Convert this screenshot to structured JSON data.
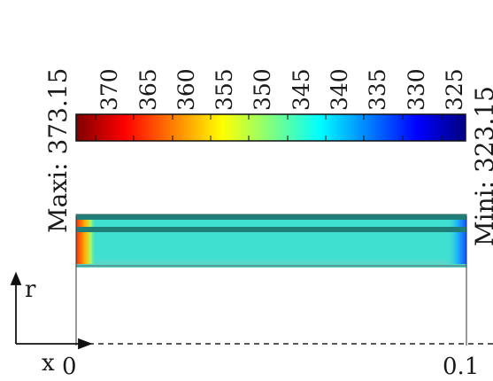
{
  "colorbar": {
    "max_label": "Maxi: 373.15",
    "min_label": "Mini: 323.15",
    "max_value": 373.15,
    "min_value": 323.15,
    "ticks": [
      "370",
      "365",
      "360",
      "355",
      "350",
      "345",
      "340",
      "335",
      "330",
      "325"
    ],
    "colors": [
      "#800000",
      "#ff0000",
      "#ff8000",
      "#ffff00",
      "#80ff80",
      "#00ffff",
      "#0080ff",
      "#0000ff",
      "#000080"
    ]
  },
  "domain": {
    "field_color": "#40e0d0",
    "hot_edge_color": "#ff2a00",
    "cold_edge_color": "#1850ff",
    "wall_color": "#1f7f78"
  },
  "axes": {
    "r_label": "r",
    "x_label": "x",
    "x_start": "0",
    "x_end": "0.1"
  }
}
